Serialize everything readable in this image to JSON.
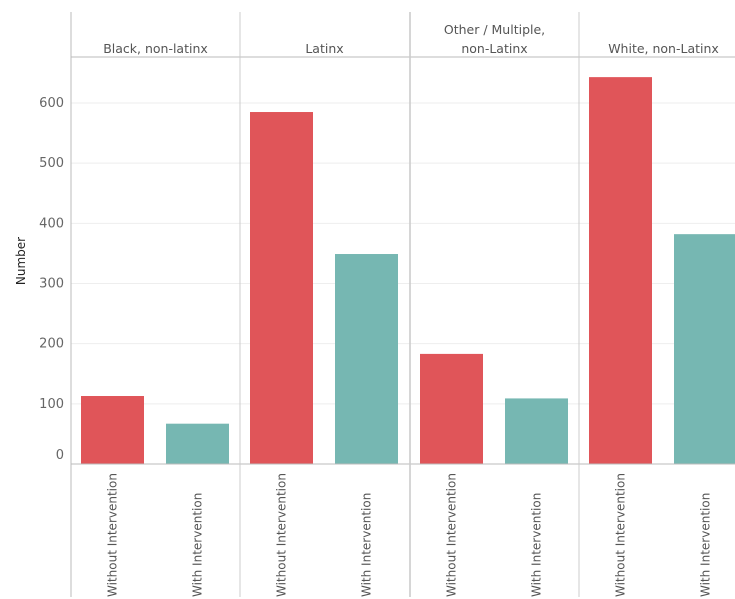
{
  "chart_data": {
    "type": "bar",
    "ylabel": "Number",
    "ylim": [
      0,
      680
    ],
    "yticks": [
      0,
      100,
      200,
      300,
      400,
      500,
      600
    ],
    "groups": [
      {
        "label_lines": [
          "Black, non-latinx"
        ]
      },
      {
        "label_lines": [
          "Latinx"
        ]
      },
      {
        "label_lines": [
          "Other / Multiple,",
          "non-Latinx"
        ]
      },
      {
        "label_lines": [
          "White, non-Latinx"
        ]
      }
    ],
    "categories": [
      "Without Intervention",
      "With Intervention"
    ],
    "values": [
      [
        113,
        67
      ],
      [
        585,
        349
      ],
      [
        183,
        109
      ],
      [
        643,
        382
      ]
    ],
    "colors": {
      "without": "#e05559",
      "with": "#76b7b2",
      "grid": "#eeeeee",
      "divider": "#cccccc",
      "axis": "#bbbbbb"
    }
  }
}
